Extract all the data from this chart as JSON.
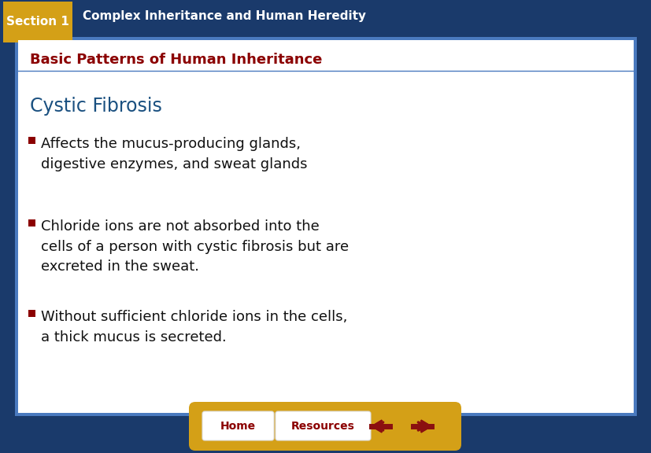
{
  "bg_color": "#1a3a6b",
  "slide_bg": "#ffffff",
  "header_bg": "#1a3a6b",
  "section_box_color": "#d4a017",
  "section_text": "Section 1",
  "section_text_color": "#ffffff",
  "header_text": "Complex Inheritance and Human Heredity",
  "header_text_color": "#ffffff",
  "subtitle_text": "Basic Patterns of Human Inheritance",
  "subtitle_color": "#8b0000",
  "topic_text": "Cystic Fibrosis",
  "topic_color": "#1a5080",
  "bullets": [
    "Affects the mucus-producing glands,\ndigestive enzymes, and sweat glands",
    "Chloride ions are not absorbed into the\ncells of a person with cystic fibrosis but are\nexcreted in the sweat.",
    "Without sufficient chloride ions in the cells,\na thick mucus is secreted."
  ],
  "bullet_color": "#111111",
  "bullet_marker_color": "#8b0000",
  "slide_border_outer": "#1a3a6b",
  "slide_border_inner": "#4a7abf",
  "bottom_bar_color": "#d4a017",
  "home_btn_text": "Home",
  "resources_btn_text": "Resources",
  "btn_text_color": "#8b0000",
  "arrow_color": "#8b1010",
  "fig_width": 8.28,
  "fig_height": 5.76,
  "dpi": 100
}
